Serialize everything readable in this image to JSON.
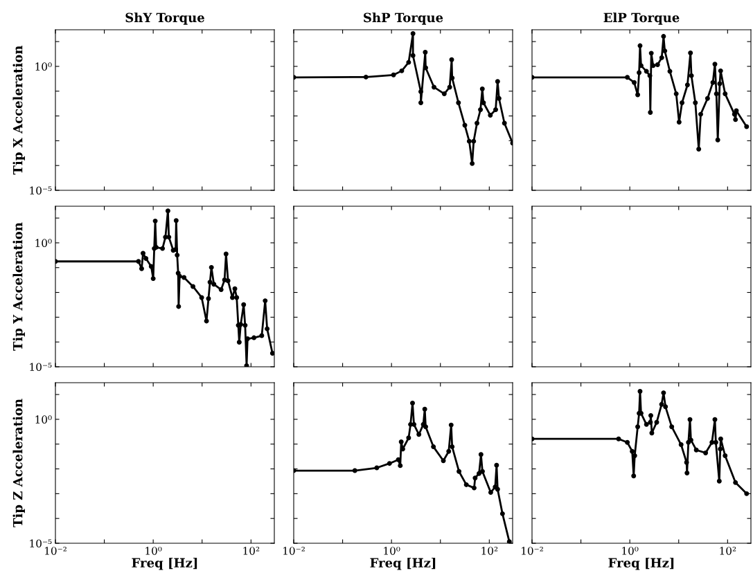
{
  "chart_data": [
    {
      "type": "line",
      "title": "ShY Torque",
      "ylabel": "Tip X Acceleration",
      "log": "xy",
      "xlim": [
        0.01,
        300
      ],
      "ylim": [
        1e-05,
        30
      ],
      "xticks": [
        {
          "value": 0.01,
          "label": null
        },
        {
          "value": 0.1,
          "label": null
        },
        {
          "value": 1,
          "label": null
        },
        {
          "value": 10,
          "label": null
        },
        {
          "value": 100,
          "label": null
        }
      ],
      "yticks": [
        {
          "value": 1e-05,
          "label": "10⁻⁵"
        },
        {
          "value": 0.0001,
          "label": null
        },
        {
          "value": 0.001,
          "label": null
        },
        {
          "value": 0.01,
          "label": null
        },
        {
          "value": 0.1,
          "label": null
        },
        {
          "value": 1,
          "label": "10⁰"
        },
        {
          "value": 10,
          "label": null
        }
      ],
      "tick_labels": "y"
    },
    {
      "type": "line",
      "title": "ShP Torque",
      "log": "xy",
      "xlim": [
        0.01,
        300
      ],
      "ylim": [
        1e-05,
        30
      ],
      "xticks": [
        {
          "value": 0.01,
          "label": null
        },
        {
          "value": 0.1,
          "label": null
        },
        {
          "value": 1,
          "label": null
        },
        {
          "value": 10,
          "label": null
        },
        {
          "value": 100,
          "label": null
        }
      ],
      "yticks": [
        {
          "value": 1e-05,
          "label": null
        },
        {
          "value": 0.0001,
          "label": null
        },
        {
          "value": 0.001,
          "label": null
        },
        {
          "value": 0.01,
          "label": null
        },
        {
          "value": 0.1,
          "label": null
        },
        {
          "value": 1,
          "label": null
        },
        {
          "value": 10,
          "label": null
        }
      ],
      "tick_labels": false,
      "marker": "circle",
      "line_style": "solid",
      "series": [
        {
          "color": "#000000",
          "x": [
            0.01,
            0.3,
            1.1,
            1.62,
            2.24,
            2.75,
            2.75,
            3.98,
            3.98,
            4.9,
            5.0,
            7.4,
            12,
            15.5,
            17,
            17.4,
            23.4,
            31.6,
            38.9,
            44.7,
            47.9,
            56,
            66,
            72,
            76,
            105,
            135,
            148,
            158,
            204,
            300
          ],
          "values": [
            0.36,
            0.37,
            0.45,
            0.66,
            1.45,
            21,
            2.75,
            0.095,
            0.034,
            3.7,
            0.87,
            0.145,
            0.078,
            0.145,
            1.86,
            0.34,
            0.034,
            0.0042,
            0.00095,
            0.00012,
            0.00095,
            0.0051,
            0.0178,
            0.123,
            0.034,
            0.0107,
            0.0178,
            0.245,
            0.051,
            0.0051,
            0.0008
          ]
        }
      ]
    },
    {
      "type": "line",
      "title": "ElP Torque",
      "log": "xy",
      "xlim": [
        0.01,
        300
      ],
      "ylim": [
        1e-05,
        30
      ],
      "xticks": [
        {
          "value": 0.01,
          "label": null
        },
        {
          "value": 0.1,
          "label": null
        },
        {
          "value": 1,
          "label": null
        },
        {
          "value": 10,
          "label": null
        },
        {
          "value": 100,
          "label": null
        }
      ],
      "yticks": [
        {
          "value": 1e-05,
          "label": null
        },
        {
          "value": 0.0001,
          "label": null
        },
        {
          "value": 0.001,
          "label": null
        },
        {
          "value": 0.01,
          "label": null
        },
        {
          "value": 0.1,
          "label": null
        },
        {
          "value": 1,
          "label": null
        },
        {
          "value": 10,
          "label": null
        }
      ],
      "tick_labels": false,
      "marker": "circle",
      "line_style": "solid",
      "series": [
        {
          "color": "#000000",
          "x": [
            0.01,
            0.89,
            1.23,
            1.45,
            1.55,
            1.62,
            1.7,
            2.19,
            2.57,
            2.63,
            2.75,
            3.0,
            3.7,
            4.5,
            4.9,
            5.2,
            6.6,
            8.9,
            10.2,
            11.7,
            15.1,
            17.4,
            18.2,
            21.9,
            25.7,
            28.2,
            38.9,
            50,
            55,
            59,
            63,
            69,
            72,
            89,
            138,
            145,
            151,
            245
          ],
          "values": [
            0.36,
            0.36,
            0.224,
            0.071,
            0.56,
            6.8,
            1.07,
            0.63,
            0.42,
            0.0138,
            3.4,
            1.07,
            1.17,
            2.24,
            16.2,
            4.2,
            0.63,
            0.078,
            0.0056,
            0.034,
            0.178,
            3.5,
            0.42,
            0.034,
            0.00046,
            0.0117,
            0.051,
            0.224,
            1.23,
            0.078,
            0.00107,
            0.2,
            0.66,
            0.078,
            0.0117,
            0.0071,
            0.0162,
            0.0037
          ]
        }
      ]
    },
    {
      "type": "line",
      "ylabel": "Tip Y Acceleration",
      "log": "xy",
      "xlim": [
        0.01,
        300
      ],
      "ylim": [
        1e-05,
        30
      ],
      "xticks": [
        {
          "value": 0.01,
          "label": null
        },
        {
          "value": 0.1,
          "label": null
        },
        {
          "value": 1,
          "label": null
        },
        {
          "value": 10,
          "label": null
        },
        {
          "value": 100,
          "label": null
        }
      ],
      "yticks": [
        {
          "value": 1e-05,
          "label": "10⁻⁵"
        },
        {
          "value": 0.0001,
          "label": null
        },
        {
          "value": 0.001,
          "label": null
        },
        {
          "value": 0.01,
          "label": null
        },
        {
          "value": 0.1,
          "label": null
        },
        {
          "value": 1,
          "label": "10⁰"
        },
        {
          "value": 10,
          "label": null
        }
      ],
      "tick_labels": "y",
      "marker": "circle",
      "line_style": "solid",
      "series": [
        {
          "color": "#000000",
          "x": [
            0.01,
            0.5,
            0.58,
            0.62,
            0.71,
            0.91,
            1.0,
            1.05,
            1.1,
            1.15,
            1.55,
            1.78,
            2.0,
            2.09,
            2.57,
            2.88,
            2.95,
            3.09,
            3.24,
            3.31,
            3.47,
            4.27,
            6.5,
            9.8,
            12.3,
            13.5,
            14.5,
            15.5,
            17.4,
            24.5,
            28.8,
            30.9,
            33.9,
            41.7,
            46.8,
            51,
            55,
            57.5,
            61.7,
            70.8,
            75.9,
            81.3,
            85,
            115,
            166,
            195,
            214,
            275
          ],
          "values": [
            0.178,
            0.178,
            0.091,
            0.38,
            0.234,
            0.112,
            0.036,
            0.59,
            7.6,
            0.66,
            0.59,
            1.7,
            19.5,
            1.7,
            0.5,
            0.54,
            7.9,
            0.32,
            0.06,
            0.0027,
            0.045,
            0.04,
            0.0174,
            0.0062,
            0.0007,
            0.0056,
            0.026,
            0.102,
            0.0214,
            0.0129,
            0.032,
            0.355,
            0.0295,
            0.0062,
            0.0141,
            0.0062,
            0.00047,
            9.8e-05,
            0.00051,
            0.0032,
            0.00047,
            1.1e-05,
            0.000135,
            0.000148,
            0.00018,
            0.0046,
            0.00034,
            3.5e-05
          ]
        }
      ]
    },
    {
      "type": "line",
      "log": "xy",
      "xlim": [
        0.01,
        300
      ],
      "ylim": [
        1e-05,
        30
      ],
      "xticks": [
        {
          "value": 0.01,
          "label": null
        },
        {
          "value": 0.1,
          "label": null
        },
        {
          "value": 1,
          "label": null
        },
        {
          "value": 10,
          "label": null
        },
        {
          "value": 100,
          "label": null
        }
      ],
      "yticks": [
        {
          "value": 1e-05,
          "label": null
        },
        {
          "value": 0.0001,
          "label": null
        },
        {
          "value": 0.001,
          "label": null
        },
        {
          "value": 0.01,
          "label": null
        },
        {
          "value": 0.1,
          "label": null
        },
        {
          "value": 1,
          "label": null
        },
        {
          "value": 10,
          "label": null
        }
      ],
      "tick_labels": false
    },
    {
      "type": "line",
      "log": "xy",
      "xlim": [
        0.01,
        300
      ],
      "ylim": [
        1e-05,
        30
      ],
      "xticks": [
        {
          "value": 0.01,
          "label": null
        },
        {
          "value": 0.1,
          "label": null
        },
        {
          "value": 1,
          "label": null
        },
        {
          "value": 10,
          "label": null
        },
        {
          "value": 100,
          "label": null
        }
      ],
      "yticks": [
        {
          "value": 1e-05,
          "label": null
        },
        {
          "value": 0.0001,
          "label": null
        },
        {
          "value": 0.001,
          "label": null
        },
        {
          "value": 0.01,
          "label": null
        },
        {
          "value": 0.1,
          "label": null
        },
        {
          "value": 1,
          "label": null
        },
        {
          "value": 10,
          "label": null
        }
      ],
      "tick_labels": false
    },
    {
      "type": "line",
      "xlabel": "Freq [Hz]",
      "ylabel": "Tip Z Acceleration",
      "log": "xy",
      "xlim": [
        0.01,
        300
      ],
      "ylim": [
        1e-05,
        30
      ],
      "xticks": [
        {
          "value": 0.01,
          "label": "10⁻²"
        },
        {
          "value": 0.1,
          "label": null
        },
        {
          "value": 1,
          "label": "10⁰"
        },
        {
          "value": 10,
          "label": null
        },
        {
          "value": 100,
          "label": "10²"
        }
      ],
      "yticks": [
        {
          "value": 1e-05,
          "label": "10⁻⁵"
        },
        {
          "value": 0.0001,
          "label": null
        },
        {
          "value": 0.001,
          "label": null
        },
        {
          "value": 0.01,
          "label": null
        },
        {
          "value": 0.1,
          "label": null
        },
        {
          "value": 1,
          "label": "10⁰"
        },
        {
          "value": 10,
          "label": null
        }
      ],
      "tick_labels": true
    },
    {
      "type": "line",
      "xlabel": "Freq [Hz]",
      "log": "xy",
      "xlim": [
        0.01,
        300
      ],
      "ylim": [
        1e-05,
        30
      ],
      "xticks": [
        {
          "value": 0.01,
          "label": "10⁻²"
        },
        {
          "value": 0.1,
          "label": null
        },
        {
          "value": 1,
          "label": "10⁰"
        },
        {
          "value": 10,
          "label": null
        },
        {
          "value": 100,
          "label": "10²"
        }
      ],
      "yticks": [
        {
          "value": 1e-05,
          "label": null
        },
        {
          "value": 0.0001,
          "label": null
        },
        {
          "value": 0.001,
          "label": null
        },
        {
          "value": 0.01,
          "label": null
        },
        {
          "value": 0.1,
          "label": null
        },
        {
          "value": 1,
          "label": null
        },
        {
          "value": 10,
          "label": null
        }
      ],
      "tick_labels": "x",
      "marker": "circle",
      "line_style": "solid",
      "series": [
        {
          "color": "#000000",
          "x": [
            0.01,
            0.178,
            0.5,
            0.91,
            1.38,
            1.51,
            1.58,
            1.7,
            2.24,
            2.45,
            2.69,
            2.88,
            3.63,
            4.47,
            4.79,
            5.0,
            7.2,
            11.5,
            14.8,
            16.6,
            17.4,
            24,
            33.9,
            49,
            51.3,
            61.7,
            67.6,
            72.4,
            107,
            132,
            141,
            148,
            186,
            257
          ],
          "values": [
            0.0085,
            0.0085,
            0.011,
            0.0166,
            0.0234,
            0.0135,
            0.123,
            0.063,
            0.178,
            0.62,
            4.5,
            0.62,
            0.245,
            0.62,
            2.57,
            0.5,
            0.078,
            0.0214,
            0.051,
            0.59,
            0.078,
            0.0079,
            0.0023,
            0.0017,
            0.0043,
            0.0065,
            0.038,
            0.0079,
            0.00112,
            0.00186,
            0.0141,
            0.0015,
            0.000155,
            1.15e-05
          ]
        }
      ]
    },
    {
      "type": "line",
      "xlabel": "Freq [Hz]",
      "log": "xy",
      "xlim": [
        0.01,
        300
      ],
      "ylim": [
        1e-05,
        30
      ],
      "xticks": [
        {
          "value": 0.01,
          "label": "10⁻²"
        },
        {
          "value": 0.1,
          "label": null
        },
        {
          "value": 1,
          "label": "10⁰"
        },
        {
          "value": 10,
          "label": null
        },
        {
          "value": 100,
          "label": "10²"
        }
      ],
      "yticks": [
        {
          "value": 1e-05,
          "label": null
        },
        {
          "value": 0.0001,
          "label": null
        },
        {
          "value": 0.001,
          "label": null
        },
        {
          "value": 0.01,
          "label": null
        },
        {
          "value": 0.1,
          "label": null
        },
        {
          "value": 1,
          "label": null
        },
        {
          "value": 10,
          "label": null
        }
      ],
      "tick_labels": "x",
      "marker": "circle",
      "line_style": "solid",
      "series": [
        {
          "color": "#000000",
          "x": [
            0.01,
            0.59,
            0.89,
            1.12,
            1.2,
            1.26,
            1.45,
            1.55,
            1.62,
            1.7,
            2.19,
            2.63,
            2.69,
            2.82,
            3.55,
            4.47,
            4.9,
            5.37,
            7.2,
            11.2,
            14.5,
            14.8,
            15.8,
            17,
            17.8,
            22.9,
            35.5,
            47.9,
            55,
            57.5,
            67.6,
            70.8,
            72.4,
            89,
            145,
            245
          ],
          "values": [
            0.162,
            0.162,
            0.117,
            0.051,
            0.0052,
            0.034,
            0.5,
            1.74,
            13.5,
            1.74,
            0.62,
            0.76,
            1.41,
            0.28,
            0.76,
            4.0,
            11.7,
            3.2,
            0.5,
            0.095,
            0.0182,
            0.0068,
            0.117,
            0.98,
            0.145,
            0.058,
            0.044,
            0.117,
            0.98,
            0.117,
            0.0032,
            0.063,
            0.162,
            0.034,
            0.0028,
            0.001
          ]
        }
      ]
    }
  ]
}
